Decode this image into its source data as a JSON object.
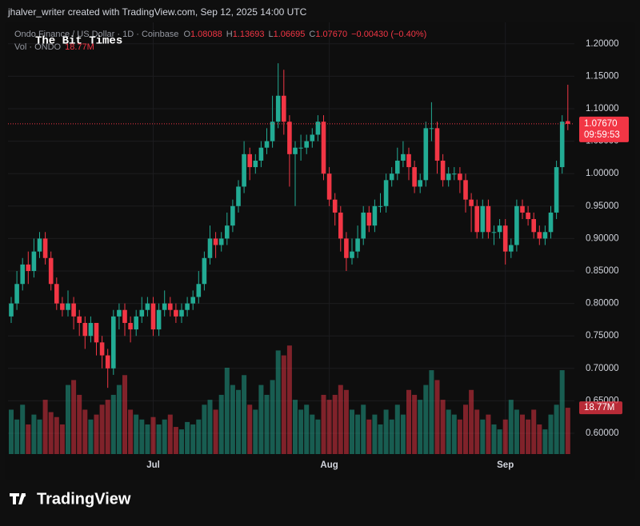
{
  "header": "jhalver_writer created with TradingView.com, Sep 12, 2025 14:00 UTC",
  "watermark": "The Bit Times",
  "brand": "TradingView",
  "chart_data": {
    "type": "candlestick",
    "title": "Ondo Finance / US Dollar · 1D · Coinbase",
    "legend_keys": [
      "O",
      "H",
      "L",
      "C"
    ],
    "ohlc_labels": [
      "1.08088",
      "1.13693",
      "1.06695",
      "1.07670"
    ],
    "change_label": "−0.00430 (−0.40%)",
    "volume_title": "Vol · ONDO",
    "volume_label": "18.77M",
    "price_tag": "1.07670",
    "countdown": "09:59:53",
    "up_color": "#22ab94",
    "down_color": "#f23645",
    "grid": true,
    "categories": [
      null,
      null,
      null,
      null,
      null,
      null,
      null,
      null,
      null,
      null,
      null,
      null,
      null,
      null,
      null,
      null,
      null,
      null,
      null,
      null,
      null,
      null,
      null,
      null,
      null,
      "Jul",
      null,
      null,
      null,
      null,
      null,
      null,
      null,
      null,
      null,
      null,
      null,
      null,
      null,
      null,
      null,
      null,
      null,
      null,
      null,
      null,
      null,
      null,
      null,
      null,
      null,
      null,
      null,
      null,
      null,
      null,
      "Aug",
      null,
      null,
      null,
      null,
      null,
      null,
      null,
      null,
      null,
      null,
      null,
      null,
      null,
      null,
      null,
      null,
      null,
      null,
      null,
      null,
      null,
      null,
      null,
      null,
      null,
      null,
      null,
      null,
      null,
      null,
      "Sep",
      null,
      null,
      null,
      null,
      null,
      null,
      null,
      null,
      null,
      null,
      null
    ],
    "open": [
      0.78,
      0.8,
      0.83,
      0.86,
      0.85,
      0.88,
      0.9,
      0.87,
      0.83,
      0.8,
      0.79,
      0.8,
      0.78,
      0.77,
      0.75,
      0.77,
      0.74,
      0.72,
      0.7,
      0.78,
      0.79,
      0.77,
      0.76,
      0.78,
      0.79,
      0.8,
      0.76,
      0.79,
      0.8,
      0.79,
      0.78,
      0.79,
      0.8,
      0.81,
      0.83,
      0.87,
      0.9,
      0.89,
      0.9,
      0.92,
      0.95,
      0.98,
      1.03,
      1.01,
      1.02,
      1.04,
      1.05,
      1.08,
      1.12,
      1.08,
      1.03,
      1.04,
      1.04,
      1.05,
      1.06,
      1.08,
      1.0,
      0.96,
      0.94,
      0.9,
      0.87,
      0.88,
      0.9,
      0.94,
      0.92,
      0.95,
      0.95,
      0.99,
      1.0,
      1.02,
      1.03,
      1.01,
      0.98,
      0.99,
      1.07,
      1.07,
      1.02,
      0.99,
      1.0,
      1.0,
      0.99,
      0.96,
      0.95,
      0.91,
      0.95,
      0.91,
      0.91,
      0.92,
      0.88,
      0.89,
      0.95,
      0.94,
      0.93,
      0.91,
      0.9,
      0.91,
      0.94,
      1.01,
      1.08088
    ],
    "high": [
      0.81,
      0.85,
      0.87,
      0.88,
      0.9,
      0.91,
      0.91,
      0.88,
      0.84,
      0.81,
      0.82,
      0.81,
      0.79,
      0.78,
      0.78,
      0.77,
      0.75,
      0.73,
      0.79,
      0.8,
      0.8,
      0.78,
      0.79,
      0.81,
      0.81,
      0.81,
      0.8,
      0.82,
      0.81,
      0.8,
      0.8,
      0.81,
      0.82,
      0.85,
      0.88,
      0.92,
      0.91,
      0.91,
      0.94,
      0.96,
      0.99,
      1.05,
      1.04,
      1.03,
      1.05,
      1.07,
      1.12,
      1.17,
      1.16,
      1.09,
      1.05,
      1.06,
      1.06,
      1.07,
      1.09,
      1.09,
      1.01,
      0.97,
      0.95,
      0.91,
      0.9,
      0.92,
      0.95,
      0.95,
      0.96,
      0.97,
      1.0,
      1.01,
      1.04,
      1.05,
      1.04,
      1.02,
      1.0,
      1.08,
      1.11,
      1.08,
      1.03,
      1.01,
      1.01,
      1.01,
      1.0,
      0.97,
      0.96,
      0.96,
      0.96,
      0.92,
      0.93,
      0.93,
      0.9,
      0.96,
      0.96,
      0.95,
      0.94,
      0.92,
      0.92,
      0.95,
      1.02,
      1.09,
      1.13693
    ],
    "low": [
      0.77,
      0.79,
      0.82,
      0.83,
      0.84,
      0.87,
      0.86,
      0.82,
      0.79,
      0.78,
      0.78,
      0.76,
      0.75,
      0.73,
      0.74,
      0.72,
      0.7,
      0.67,
      0.69,
      0.76,
      0.75,
      0.74,
      0.75,
      0.77,
      0.78,
      0.75,
      0.75,
      0.78,
      0.78,
      0.77,
      0.77,
      0.78,
      0.79,
      0.8,
      0.82,
      0.86,
      0.87,
      0.88,
      0.89,
      0.91,
      0.94,
      0.97,
      0.99,
      1.0,
      1.01,
      1.03,
      1.04,
      1.07,
      1.06,
      0.98,
      0.95,
      1.02,
      1.03,
      1.04,
      1.05,
      0.99,
      0.95,
      0.92,
      0.88,
      0.85,
      0.86,
      0.87,
      0.89,
      0.91,
      0.91,
      0.94,
      0.94,
      0.98,
      0.99,
      1.01,
      0.99,
      0.97,
      0.97,
      0.98,
      1.05,
      1.0,
      0.98,
      0.98,
      0.99,
      0.97,
      0.94,
      0.91,
      0.9,
      0.9,
      0.9,
      0.89,
      0.9,
      0.86,
      0.87,
      0.88,
      0.93,
      0.92,
      0.9,
      0.89,
      0.89,
      0.9,
      0.93,
      1.0,
      1.06695
    ],
    "close": [
      0.8,
      0.83,
      0.86,
      0.85,
      0.88,
      0.9,
      0.87,
      0.83,
      0.8,
      0.79,
      0.8,
      0.78,
      0.77,
      0.75,
      0.77,
      0.74,
      0.72,
      0.7,
      0.78,
      0.79,
      0.77,
      0.76,
      0.78,
      0.79,
      0.8,
      0.76,
      0.79,
      0.8,
      0.79,
      0.78,
      0.79,
      0.8,
      0.81,
      0.83,
      0.87,
      0.9,
      0.89,
      0.9,
      0.92,
      0.95,
      0.98,
      1.03,
      1.01,
      1.02,
      1.04,
      1.05,
      1.08,
      1.12,
      1.08,
      1.03,
      1.04,
      1.04,
      1.05,
      1.06,
      1.08,
      1.0,
      0.96,
      0.94,
      0.9,
      0.87,
      0.88,
      0.9,
      0.94,
      0.92,
      0.95,
      0.95,
      0.99,
      1.0,
      1.02,
      1.03,
      1.01,
      0.98,
      0.99,
      1.07,
      1.07,
      1.02,
      0.99,
      1.0,
      1.0,
      0.99,
      0.96,
      0.95,
      0.91,
      0.95,
      0.91,
      0.91,
      0.92,
      0.88,
      0.89,
      0.95,
      0.94,
      0.93,
      0.91,
      0.9,
      0.91,
      0.94,
      1.01,
      1.08,
      1.0767
    ],
    "volume": [
      18,
      14,
      20,
      12,
      16,
      14,
      22,
      17,
      15,
      12,
      28,
      30,
      24,
      18,
      14,
      16,
      20,
      22,
      24,
      28,
      32,
      18,
      16,
      14,
      12,
      15,
      12,
      14,
      16,
      11,
      10,
      13,
      12,
      14,
      20,
      22,
      18,
      24,
      35,
      28,
      26,
      32,
      20,
      18,
      28,
      24,
      30,
      42,
      40,
      44,
      22,
      18,
      20,
      16,
      14,
      24,
      22,
      24,
      28,
      26,
      18,
      16,
      20,
      14,
      16,
      12,
      18,
      14,
      20,
      16,
      26,
      24,
      22,
      28,
      34,
      30,
      22,
      18,
      16,
      14,
      20,
      26,
      18,
      14,
      16,
      12,
      10,
      14,
      22,
      18,
      16,
      14,
      18,
      12,
      10,
      16,
      20,
      34,
      18.77
    ],
    "volume_ylim": [
      0,
      175
    ],
    "ylim": [
      0.568,
      1.233
    ],
    "yticks": [
      {
        "value": 0.6,
        "label": "0.60000"
      },
      {
        "value": 0.65,
        "label": "0.65000"
      },
      {
        "value": 0.7,
        "label": "0.70000"
      },
      {
        "value": 0.75,
        "label": "0.75000"
      },
      {
        "value": 0.8,
        "label": "0.80000"
      },
      {
        "value": 0.85,
        "label": "0.85000"
      },
      {
        "value": 0.9,
        "label": "0.90000"
      },
      {
        "value": 0.95,
        "label": "0.95000"
      },
      {
        "value": 1,
        "label": "1.00000"
      },
      {
        "value": 1.05,
        "label": "1.05000"
      },
      {
        "value": 1.1,
        "label": "1.10000"
      },
      {
        "value": 1.15,
        "label": "1.15000"
      },
      {
        "value": 1.2,
        "label": "1.20000"
      }
    ]
  }
}
